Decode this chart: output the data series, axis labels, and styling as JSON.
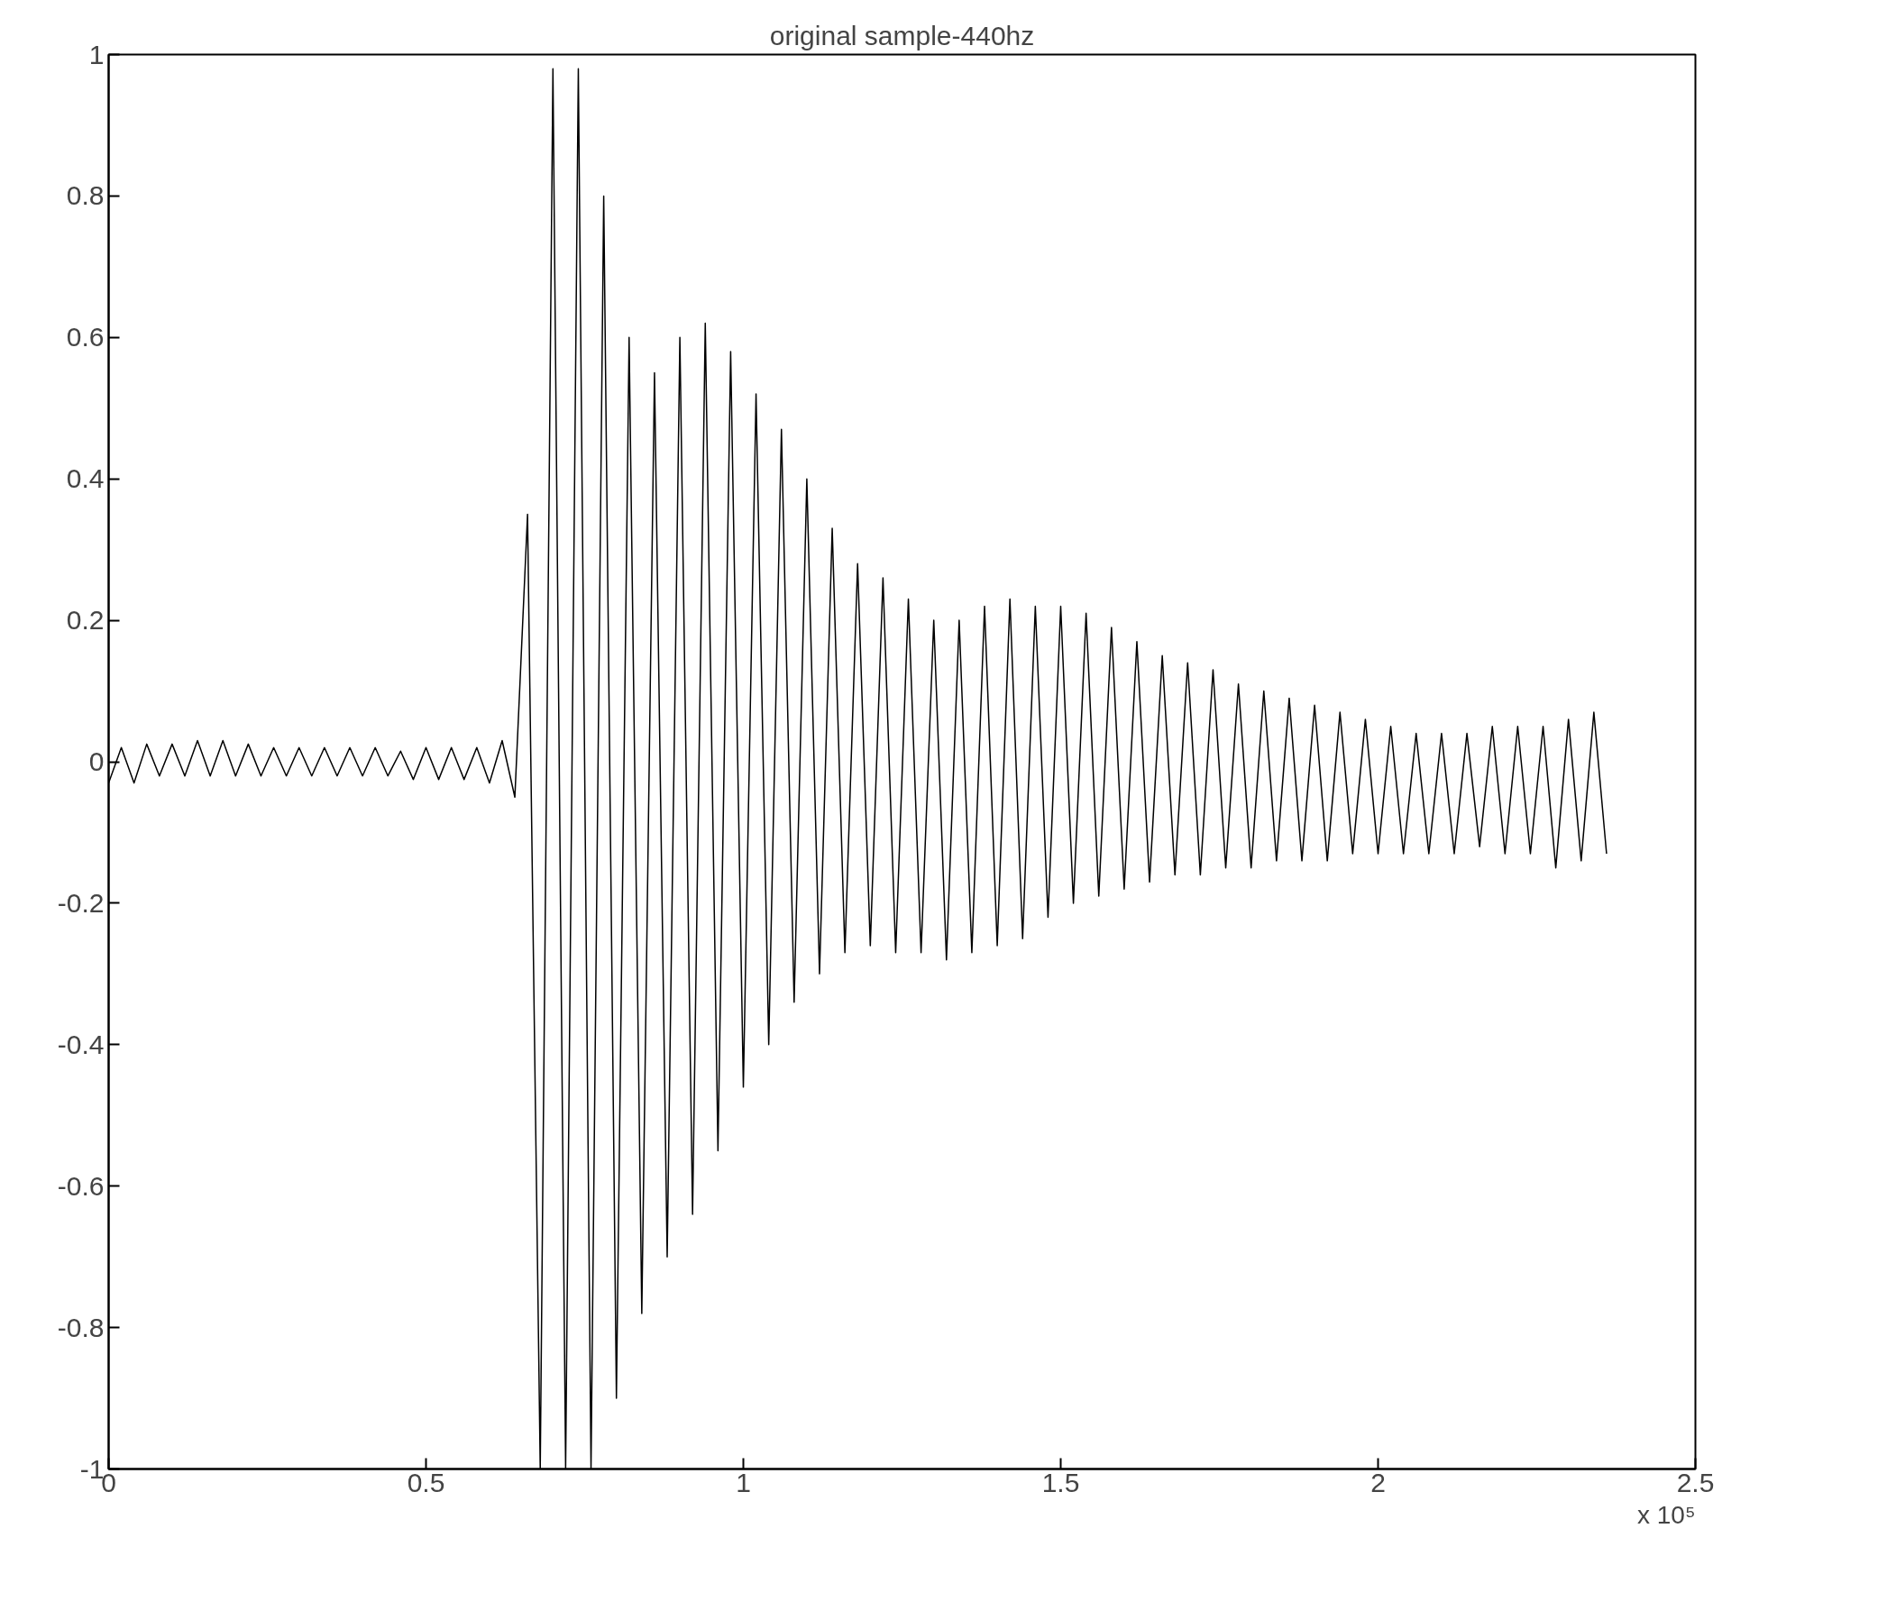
{
  "chart_data": {
    "type": "line",
    "title": "original sample-440hz",
    "x": [
      0,
      0.02,
      0.04,
      0.06,
      0.08,
      0.1,
      0.12,
      0.14,
      0.16,
      0.18,
      0.2,
      0.22,
      0.24,
      0.26,
      0.28,
      0.3,
      0.32,
      0.34,
      0.36,
      0.38,
      0.4,
      0.42,
      0.44,
      0.46,
      0.48,
      0.5,
      0.52,
      0.54,
      0.56,
      0.58,
      0.6,
      0.62,
      0.64,
      0.66,
      0.68,
      0.7,
      0.72,
      0.74,
      0.76,
      0.78,
      0.8,
      0.82,
      0.84,
      0.86,
      0.88,
      0.9,
      0.92,
      0.94,
      0.96,
      0.98,
      1,
      1.02,
      1.04,
      1.06,
      1.08,
      1.1,
      1.12,
      1.14,
      1.16,
      1.18,
      1.2,
      1.22,
      1.24,
      1.26,
      1.28,
      1.3,
      1.32,
      1.34,
      1.36,
      1.38,
      1.4,
      1.42,
      1.44,
      1.46,
      1.48,
      1.5,
      1.52,
      1.54,
      1.56,
      1.58,
      1.6,
      1.62,
      1.64,
      1.66,
      1.68,
      1.7,
      1.72,
      1.74,
      1.76,
      1.78,
      1.8,
      1.82,
      1.84,
      1.86,
      1.88,
      1.9,
      1.92,
      1.94,
      1.96,
      1.98,
      2,
      2.02,
      2.04,
      2.06,
      2.08,
      2.1,
      2.12,
      2.14,
      2.16,
      2.18,
      2.2,
      2.22,
      2.24,
      2.26,
      2.28,
      2.3,
      2.32,
      2.34,
      2.36
    ],
    "series": [
      {
        "color": "#000000",
        "values": [
          -0.03,
          0.02,
          -0.03,
          0.025,
          -0.02,
          0.025,
          -0.02,
          0.03,
          -0.02,
          0.03,
          -0.02,
          0.025,
          -0.02,
          0.02,
          -0.02,
          0.02,
          -0.02,
          0.02,
          -0.02,
          0.02,
          -0.02,
          0.02,
          -0.02,
          0.015,
          -0.025,
          0.02,
          -0.025,
          0.02,
          -0.025,
          0.02,
          -0.03,
          0.03,
          -0.05,
          0.35,
          -1,
          0.98,
          -1,
          0.98,
          -1,
          0.8,
          -0.9,
          0.6,
          -0.78,
          0.55,
          -0.7,
          0.6,
          -0.64,
          0.62,
          -0.55,
          0.58,
          -0.46,
          0.52,
          -0.4,
          0.47,
          -0.34,
          0.4,
          -0.3,
          0.33,
          -0.27,
          0.28,
          -0.26,
          0.26,
          -0.27,
          0.23,
          -0.27,
          0.2,
          -0.28,
          0.2,
          -0.27,
          0.22,
          -0.26,
          0.23,
          -0.25,
          0.22,
          -0.22,
          0.22,
          -0.2,
          0.21,
          -0.19,
          0.19,
          -0.18,
          0.17,
          -0.17,
          0.15,
          -0.16,
          0.14,
          -0.16,
          0.13,
          -0.15,
          0.11,
          -0.15,
          0.1,
          -0.14,
          0.09,
          -0.14,
          0.08,
          -0.14,
          0.07,
          -0.13,
          0.06,
          -0.13,
          0.05,
          -0.13,
          0.04,
          -0.13,
          0.04,
          -0.13,
          0.04,
          -0.12,
          0.05,
          -0.13,
          0.05,
          -0.13,
          0.05,
          -0.15,
          0.06,
          -0.14,
          0.07,
          -0.13
        ]
      }
    ],
    "xlim": [
      0,
      2.5
    ],
    "xticks": [
      0,
      0.5,
      1,
      1.5,
      2,
      2.5
    ],
    "ylim": [
      -1,
      1
    ],
    "yticks": [
      -1,
      -0.8,
      -0.6,
      -0.4,
      -0.2,
      0,
      0.2,
      0.4,
      0.6,
      0.8,
      1
    ],
    "annotations": [
      "x 10⁵"
    ],
    "grid": false
  }
}
